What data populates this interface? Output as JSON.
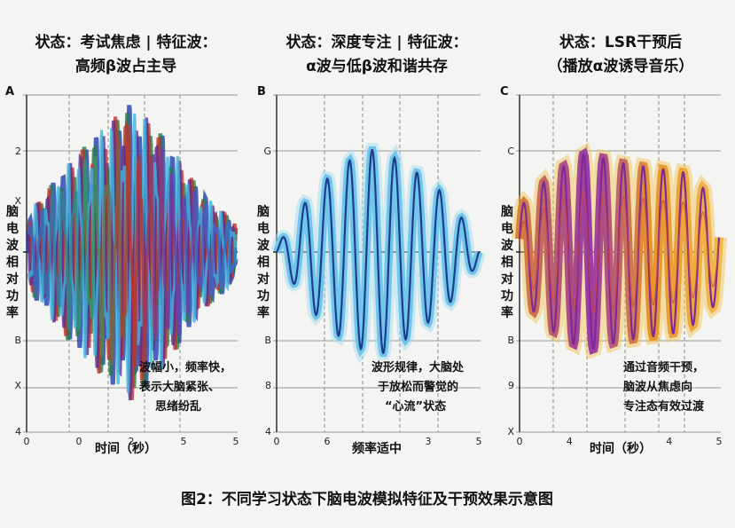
{
  "caption": "图2：不同学习状态下脑电波模拟特征及干预效果示意图",
  "chart_data": [
    {
      "type": "line",
      "panel_letter": "A",
      "title_lines": [
        "状态：考试焦虑 | 特征波：",
        "高频β波占主导"
      ],
      "ylabel": "脑电波相对功率",
      "xlabel": "时间（秒）",
      "y_tick_labels": [
        "2",
        "X",
        "B",
        "X",
        "4"
      ],
      "x_tick_labels": [
        "0",
        "0",
        "2",
        "5",
        "5"
      ],
      "annotation_lines": [
        "波幅小，频率快，",
        "表示大脑紧张、",
        "思绪纷乱"
      ],
      "wave": {
        "style": "chaotic",
        "cycles": 19,
        "amplitude_profile": [
          0.25,
          0.55,
          0.8,
          1.0,
          0.75,
          0.4,
          0.2
        ]
      },
      "colors": [
        "#1f3fae",
        "#2a7a4a",
        "#c0342b",
        "#5b2c8c",
        "#3cb6e0"
      ]
    },
    {
      "type": "line",
      "panel_letter": "B",
      "title_lines": [
        "状态：深度专注 | 特征波：",
        "α波与低β波和谐共存"
      ],
      "ylabel": "脑电波相对功率",
      "xlabel": "频率适中",
      "y_tick_labels": [
        "G",
        "",
        "B",
        "8",
        "4"
      ],
      "x_tick_labels": [
        "0",
        "6",
        "",
        "3",
        "5"
      ],
      "annotation_lines": [
        "波形规律，大脑处",
        "于放松而警觉的",
        "“心流”状态"
      ],
      "wave": {
        "style": "smooth",
        "cycles": 9,
        "amplitude_profile": [
          0.05,
          0.55,
          0.85,
          1.0,
          0.8,
          0.55,
          0.1
        ]
      },
      "colors": [
        "#6fc6ea",
        "#1e3c8c",
        "#a8dcf0"
      ]
    },
    {
      "type": "line",
      "panel_letter": "C",
      "title_lines": [
        "状态：LSR干预后",
        "（播放α波诱导音乐）"
      ],
      "ylabel": "脑电波相对功率",
      "xlabel": "时间（秒）",
      "y_tick_labels": [
        "C",
        "",
        "B",
        "9",
        "X"
      ],
      "x_tick_labels": [
        "0",
        "4",
        "",
        "4",
        "5"
      ],
      "annotation_lines": [
        "通过音频干预，",
        "脑波从焦虑向",
        "专注态有效过渡"
      ],
      "wave": {
        "style": "transition",
        "cycles": 10,
        "amplitude_profile": [
          0.45,
          0.8,
          1.0,
          0.9,
          0.85,
          0.8,
          0.5
        ]
      },
      "colors": [
        "#e8892a",
        "#7d2a9a",
        "#f2c24a",
        "#c94a3a"
      ]
    }
  ]
}
